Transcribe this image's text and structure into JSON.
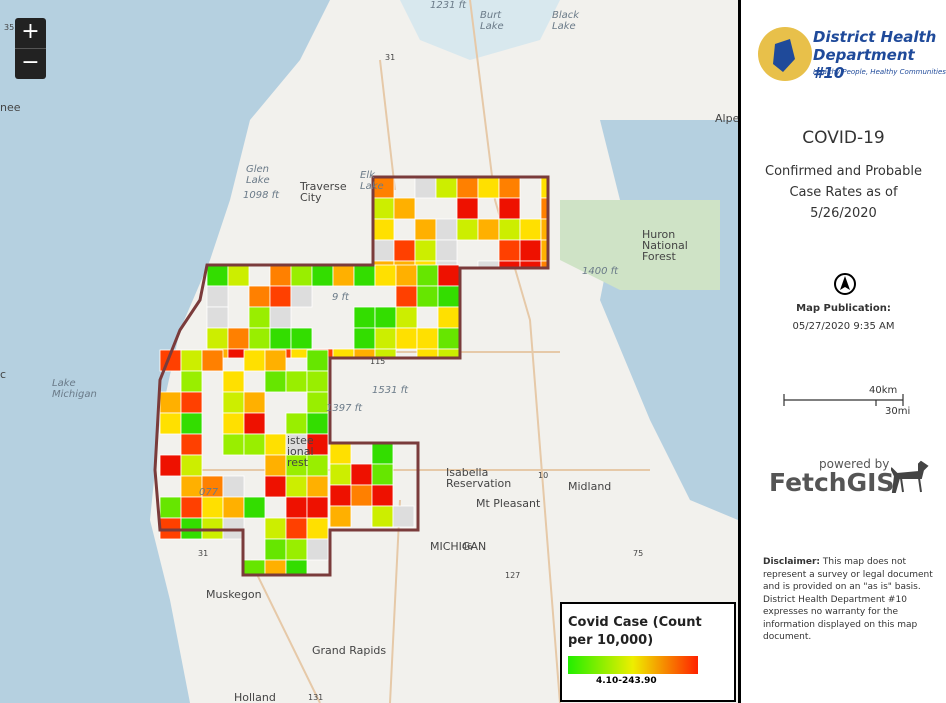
{
  "zoom": {
    "in": "+",
    "out": "−"
  },
  "map_labels": {
    "alt_1231": "1231 ft",
    "burt_lake": "Burt\nLake",
    "black_lake": "Black\nLake",
    "hwy_35": "35",
    "hwy_31_n": "31",
    "nee": "nee",
    "alpe": "Alpe",
    "glen_lake": "Glen\nLake",
    "alt_1098": "1098 ft",
    "traverse_city": "Traverse\nCity",
    "elk_lake": "Elk\nLake",
    "huron_nf": "Huron\nNational\nForest",
    "alt_1400": "1400 ft",
    "lake_michigan": "Lake\nMichigan",
    "alt_9": "9 ft",
    "hwy_115": "115",
    "alt_1531": "1531 ft",
    "alt_1397": "1397 ft",
    "manistee_nf": "istee\nional\nrest",
    "alt_077": "077",
    "c": "c",
    "isabella": "Isabella\nReservation",
    "hwy_10": "10",
    "midland": "Midland",
    "mt_pleasant": "Mt Pleasant",
    "michigan": "MICHIGAN",
    "hwy_46": "46",
    "hwy_127": "127",
    "hwy_75": "75",
    "hwy_31_s": "31",
    "muskegon": "Muskegon",
    "grand_rapids": "Grand Rapids",
    "hwy_131": "131",
    "holland": "Holland"
  },
  "legend": {
    "title": "Covid Case (Count per 10,000)",
    "range": "4.10-243.90"
  },
  "panel": {
    "org_name": "District Health Department",
    "org_number": "#10",
    "tagline": "Healthy People, Healthy Communities",
    "title": "COVID-19",
    "subtitle": "Confirmed and Probable Case Rates as of 5/26/2020",
    "publication_label": "Map Publication:",
    "publication_date": "05/27/2020 9:35 AM",
    "scale_km": "40km",
    "scale_mi": "30mi",
    "powered_by": "powered by",
    "brand": "FetchGIS",
    "disclaimer_label": "Disclaimer:",
    "disclaimer": " This map does not represent a survey or legal document and is provided on an \"as is\" basis. District Health Department #10 expresses no warranty for the information displayed on this map document."
  }
}
